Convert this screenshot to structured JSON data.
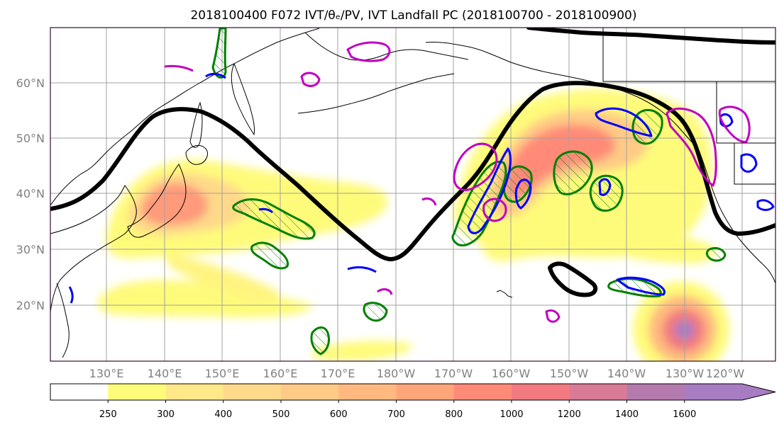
{
  "title": "2018100400 F072 IVT/θₑ/PV, IVT Landfall PC (2018100700 - 2018100900)",
  "map": {
    "lat_labels": [
      "60°N",
      "50°N",
      "40°N",
      "30°N",
      "20°N"
    ],
    "lon_labels": [
      "130°E",
      "140°E",
      "150°E",
      "160°E",
      "170°E",
      "180°W",
      "170°W",
      "160°W",
      "150°W",
      "140°W",
      "130°W",
      "120°W"
    ]
  },
  "colorbar": {
    "ticks": [
      "250",
      "300",
      "400",
      "500",
      "600",
      "700",
      "800",
      "1000",
      "1200",
      "1400",
      "1600"
    ],
    "colors": [
      "#ffffff",
      "#fffb7a",
      "#ffe888",
      "#ffd98a",
      "#ffca86",
      "#ffb97f",
      "#ffa57a",
      "#ff8a78",
      "#f27a80",
      "#d97a96",
      "#b47aae",
      "#a77cc2"
    ]
  },
  "overlay_colors": {
    "geopotential_contour": "#000000",
    "theta_e_contour": "#008000",
    "pv_contour_blue": "#0000ff",
    "pv_contour_magenta": "#c000c0"
  }
}
